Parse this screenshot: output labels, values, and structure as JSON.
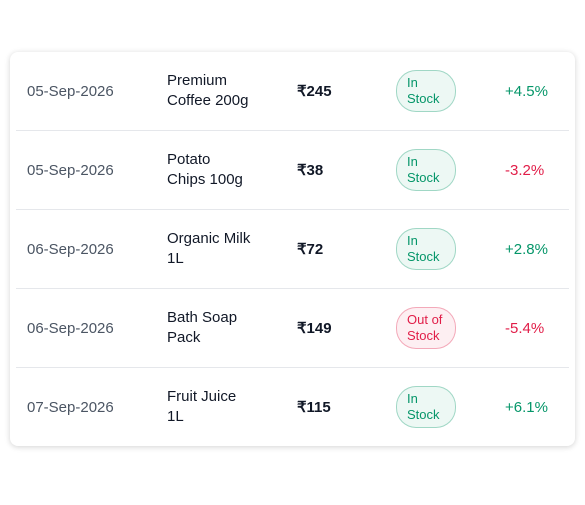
{
  "table": {
    "rows": [
      {
        "date": "05-Sep-2026",
        "product": "Premium Coffee 200g",
        "price": "₹245",
        "status": "In Stock",
        "status_color": "#059669",
        "change": "+4.5%",
        "change_color": "#059669"
      },
      {
        "date": "05-Sep-2026",
        "product": "Potato Chips 100g",
        "price": "₹38",
        "status": "In Stock",
        "status_color": "#059669",
        "change": "-3.2%",
        "change_color": "#e11d48"
      },
      {
        "date": "06-Sep-2026",
        "product": "Organic Milk 1L",
        "price": "₹72",
        "status": "In Stock",
        "status_color": "#059669",
        "change": "+2.8%",
        "change_color": "#059669"
      },
      {
        "date": "06-Sep-2026",
        "product": "Bath Soap Pack",
        "price": "₹149",
        "status": "Out of Stock",
        "status_color": "#e11d48",
        "change": "-5.4%",
        "change_color": "#e11d48"
      },
      {
        "date": "07-Sep-2026",
        "product": "Fruit Juice 1L",
        "price": "₹115",
        "status": "In Stock",
        "status_color": "#059669",
        "change": "+6.1%",
        "change_color": "#059669"
      }
    ]
  }
}
